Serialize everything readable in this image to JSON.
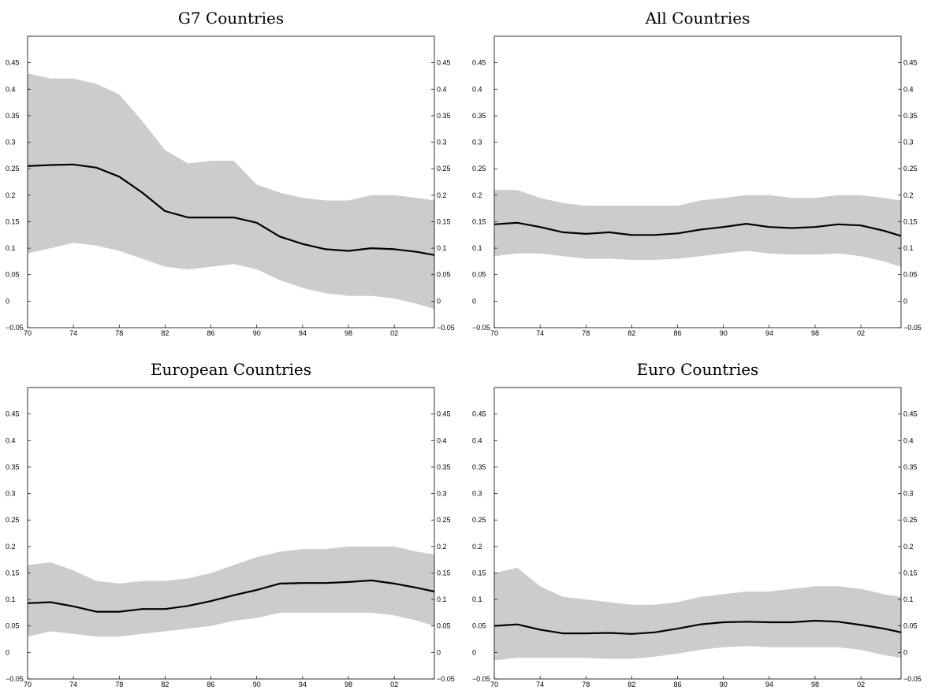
{
  "chart_data": [
    {
      "type": "area",
      "title": "G7 Countries",
      "xlabel": "",
      "ylabel": "",
      "xlim": [
        1970,
        2005.5
      ],
      "ylim": [
        -0.05,
        0.5
      ],
      "x_ticks": [
        1970,
        1974,
        1978,
        1982,
        1986,
        1990,
        1994,
        1998,
        2002
      ],
      "x_tick_labels": [
        "70",
        "74",
        "78",
        "82",
        "86",
        "90",
        "94",
        "98",
        "02"
      ],
      "y_ticks": [
        -0.05,
        0,
        0.05,
        0.1,
        0.15,
        0.2,
        0.25,
        0.3,
        0.35,
        0.4,
        0.45
      ],
      "y_tick_labels": [
        "−0.05",
        "0",
        "0.05",
        "0.1",
        "0.15",
        "0.2",
        "0.25",
        "0.3",
        "0.35",
        "0.4",
        "0.45"
      ],
      "grid": false,
      "x": [
        1970,
        1972,
        1974,
        1976,
        1978,
        1980,
        1982,
        1984,
        1986,
        1988,
        1990,
        1992,
        1994,
        1996,
        1998,
        2000,
        2002,
        2004,
        2005.5
      ],
      "series": [
        {
          "role": "estimate",
          "values": [
            0.255,
            0.257,
            0.258,
            0.252,
            0.235,
            0.205,
            0.17,
            0.158,
            0.158,
            0.158,
            0.148,
            0.122,
            0.108,
            0.098,
            0.095,
            0.1,
            0.098,
            0.093,
            0.087
          ]
        },
        {
          "role": "band-upper",
          "values": [
            0.43,
            0.42,
            0.42,
            0.41,
            0.39,
            0.34,
            0.285,
            0.26,
            0.265,
            0.265,
            0.22,
            0.205,
            0.195,
            0.19,
            0.19,
            0.2,
            0.2,
            0.195,
            0.19
          ]
        },
        {
          "role": "band-lower",
          "values": [
            0.09,
            0.1,
            0.11,
            0.105,
            0.095,
            0.08,
            0.065,
            0.06,
            0.065,
            0.07,
            0.06,
            0.04,
            0.025,
            0.015,
            0.01,
            0.01,
            0.005,
            -0.005,
            -0.015
          ]
        }
      ],
      "colors": {
        "line": "#000000",
        "band": "#cccccc"
      }
    },
    {
      "type": "area",
      "title": "All Countries",
      "xlabel": "",
      "ylabel": "",
      "xlim": [
        1970,
        2005.5
      ],
      "ylim": [
        -0.05,
        0.5
      ],
      "x_ticks": [
        1970,
        1974,
        1978,
        1982,
        1986,
        1990,
        1994,
        1998,
        2002
      ],
      "x_tick_labels": [
        "70",
        "74",
        "78",
        "82",
        "86",
        "90",
        "94",
        "98",
        "02"
      ],
      "y_ticks": [
        -0.05,
        0,
        0.05,
        0.1,
        0.15,
        0.2,
        0.25,
        0.3,
        0.35,
        0.4,
        0.45
      ],
      "y_tick_labels": [
        "−0.05",
        "0",
        "0.05",
        "0.1",
        "0.15",
        "0.2",
        "0.25",
        "0.3",
        "0.35",
        "0.4",
        "0.45"
      ],
      "grid": false,
      "x": [
        1970,
        1972,
        1974,
        1976,
        1978,
        1980,
        1982,
        1984,
        1986,
        1988,
        1990,
        1992,
        1994,
        1996,
        1998,
        2000,
        2002,
        2004,
        2005.5
      ],
      "series": [
        {
          "role": "estimate",
          "values": [
            0.145,
            0.148,
            0.14,
            0.13,
            0.127,
            0.13,
            0.125,
            0.125,
            0.128,
            0.135,
            0.14,
            0.146,
            0.14,
            0.138,
            0.14,
            0.145,
            0.143,
            0.133,
            0.123
          ]
        },
        {
          "role": "band-upper",
          "values": [
            0.21,
            0.21,
            0.195,
            0.185,
            0.18,
            0.18,
            0.18,
            0.18,
            0.18,
            0.19,
            0.195,
            0.2,
            0.2,
            0.195,
            0.195,
            0.2,
            0.2,
            0.195,
            0.19
          ]
        },
        {
          "role": "band-lower",
          "values": [
            0.085,
            0.09,
            0.09,
            0.085,
            0.08,
            0.08,
            0.078,
            0.078,
            0.08,
            0.085,
            0.09,
            0.095,
            0.09,
            0.088,
            0.088,
            0.09,
            0.085,
            0.075,
            0.065
          ]
        }
      ],
      "colors": {
        "line": "#000000",
        "band": "#cccccc"
      }
    },
    {
      "type": "area",
      "title": "European Countries",
      "xlabel": "",
      "ylabel": "",
      "xlim": [
        1970,
        2005.5
      ],
      "ylim": [
        -0.05,
        0.5
      ],
      "x_ticks": [
        1970,
        1974,
        1978,
        1982,
        1986,
        1990,
        1994,
        1998,
        2002
      ],
      "x_tick_labels": [
        "70",
        "74",
        "78",
        "82",
        "86",
        "90",
        "94",
        "98",
        "02"
      ],
      "y_ticks": [
        -0.05,
        0,
        0.05,
        0.1,
        0.15,
        0.2,
        0.25,
        0.3,
        0.35,
        0.4,
        0.45
      ],
      "y_tick_labels": [
        "−0.05",
        "0",
        "0.05",
        "0.1",
        "0.15",
        "0.2",
        "0.25",
        "0.3",
        "0.35",
        "0.4",
        "0.45"
      ],
      "grid": false,
      "x": [
        1970,
        1972,
        1974,
        1976,
        1978,
        1980,
        1982,
        1984,
        1986,
        1988,
        1990,
        1992,
        1994,
        1996,
        1998,
        2000,
        2002,
        2004,
        2005.5
      ],
      "series": [
        {
          "role": "estimate",
          "values": [
            0.093,
            0.095,
            0.087,
            0.077,
            0.077,
            0.082,
            0.082,
            0.088,
            0.097,
            0.108,
            0.118,
            0.13,
            0.131,
            0.131,
            0.133,
            0.136,
            0.13,
            0.122,
            0.115
          ]
        },
        {
          "role": "band-upper",
          "values": [
            0.165,
            0.17,
            0.155,
            0.135,
            0.13,
            0.135,
            0.135,
            0.14,
            0.15,
            0.165,
            0.18,
            0.19,
            0.195,
            0.195,
            0.2,
            0.2,
            0.2,
            0.19,
            0.185
          ]
        },
        {
          "role": "band-lower",
          "values": [
            0.03,
            0.04,
            0.035,
            0.03,
            0.03,
            0.035,
            0.04,
            0.045,
            0.05,
            0.06,
            0.065,
            0.075,
            0.075,
            0.075,
            0.075,
            0.075,
            0.07,
            0.06,
            0.05
          ]
        }
      ],
      "colors": {
        "line": "#000000",
        "band": "#cccccc"
      }
    },
    {
      "type": "area",
      "title": "Euro Countries",
      "xlabel": "",
      "ylabel": "",
      "xlim": [
        1970,
        2005.5
      ],
      "ylim": [
        -0.05,
        0.5
      ],
      "x_ticks": [
        1970,
        1974,
        1978,
        1982,
        1986,
        1990,
        1994,
        1998,
        2002
      ],
      "x_tick_labels": [
        "70",
        "74",
        "78",
        "82",
        "86",
        "90",
        "94",
        "98",
        "02"
      ],
      "y_ticks": [
        -0.05,
        0,
        0.05,
        0.1,
        0.15,
        0.2,
        0.25,
        0.3,
        0.35,
        0.4,
        0.45
      ],
      "y_tick_labels": [
        "−0.05",
        "0",
        "0.05",
        "0.1",
        "0.15",
        "0.2",
        "0.25",
        "0.3",
        "0.35",
        "0.4",
        "0.45"
      ],
      "grid": false,
      "x": [
        1970,
        1972,
        1974,
        1976,
        1978,
        1980,
        1982,
        1984,
        1986,
        1988,
        1990,
        1992,
        1994,
        1996,
        1998,
        2000,
        2002,
        2004,
        2005.5
      ],
      "series": [
        {
          "role": "estimate",
          "values": [
            0.05,
            0.053,
            0.043,
            0.036,
            0.036,
            0.037,
            0.035,
            0.038,
            0.045,
            0.053,
            0.057,
            0.058,
            0.057,
            0.057,
            0.06,
            0.058,
            0.052,
            0.045,
            0.038
          ]
        },
        {
          "role": "band-upper",
          "values": [
            0.15,
            0.16,
            0.125,
            0.105,
            0.1,
            0.095,
            0.09,
            0.09,
            0.095,
            0.105,
            0.11,
            0.115,
            0.115,
            0.12,
            0.125,
            0.125,
            0.12,
            0.11,
            0.105
          ]
        },
        {
          "role": "band-lower",
          "values": [
            -0.015,
            -0.01,
            -0.01,
            -0.01,
            -0.01,
            -0.012,
            -0.012,
            -0.008,
            -0.002,
            0.005,
            0.01,
            0.012,
            0.01,
            0.01,
            0.01,
            0.01,
            0.005,
            -0.005,
            -0.01
          ]
        }
      ],
      "colors": {
        "line": "#000000",
        "band": "#cccccc"
      }
    }
  ]
}
